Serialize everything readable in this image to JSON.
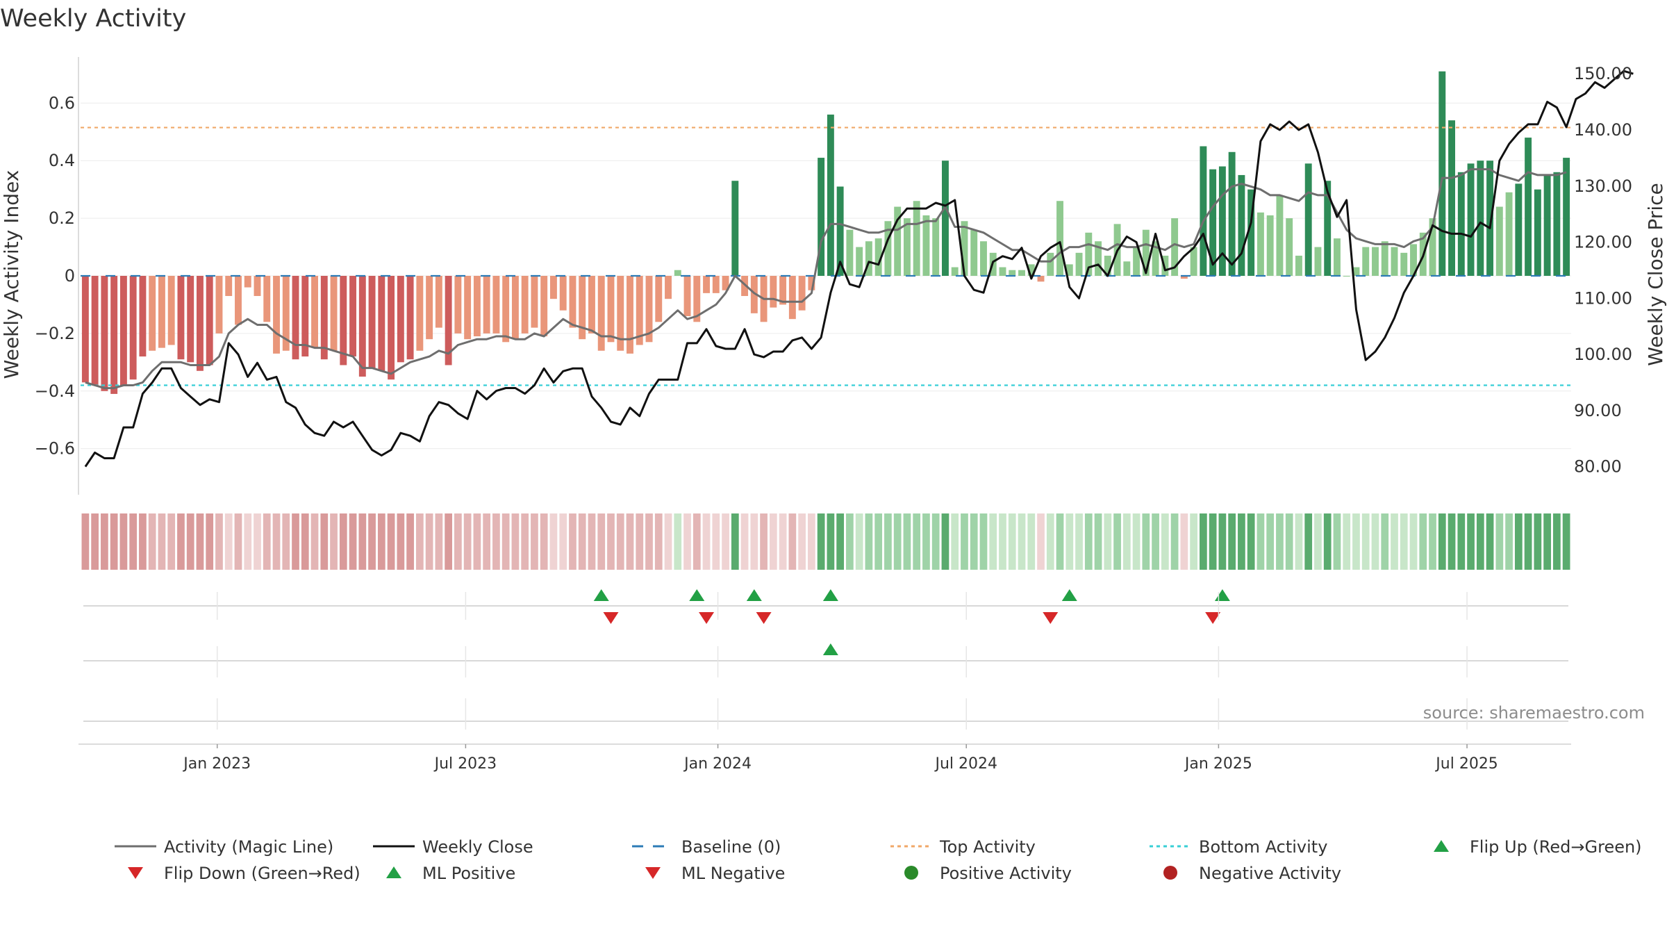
{
  "chart_data": {
    "type": "bar",
    "title": "Weekly Activity",
    "ylabel": "Weekly Activity Index",
    "y2label": "Weekly Close Price",
    "ylim": [
      -0.76,
      0.76
    ],
    "y2lim": [
      75,
      153
    ],
    "yticks": [
      0.6,
      0.4,
      0.2,
      0,
      -0.2,
      -0.4,
      -0.6
    ],
    "ytick_labels": [
      "0.6",
      "0.4",
      "0.2",
      "0",
      "−0.2",
      "−0.4",
      "−0.6"
    ],
    "y2ticks": [
      150,
      140,
      130,
      120,
      110,
      100,
      90,
      80
    ],
    "y2tick_labels": [
      "150.00",
      "140.00",
      "130.00",
      "120.00",
      "110.00",
      "100.00",
      "90.00",
      "80.00"
    ],
    "x_tick_labels": [
      "Jan 2023",
      "Jul 2023",
      "Jan 2024",
      "Jul 2024",
      "Jan 2025",
      "Jul 2025"
    ],
    "x_tick_weeks": [
      14.3,
      40.3,
      66.7,
      92.7,
      119.1,
      145.1
    ],
    "top_activity": 0.515,
    "bottom_activity": -0.38,
    "activity": [
      -0.37,
      -0.38,
      -0.4,
      -0.41,
      -0.38,
      -0.36,
      -0.28,
      -0.26,
      -0.25,
      -0.24,
      -0.29,
      -0.3,
      -0.33,
      -0.31,
      -0.2,
      -0.07,
      -0.17,
      -0.04,
      -0.07,
      -0.16,
      -0.27,
      -0.26,
      -0.29,
      -0.28,
      -0.25,
      -0.29,
      -0.26,
      -0.31,
      -0.28,
      -0.35,
      -0.32,
      -0.33,
      -0.36,
      -0.3,
      -0.29,
      -0.26,
      -0.22,
      -0.18,
      -0.31,
      -0.2,
      -0.22,
      -0.21,
      -0.2,
      -0.2,
      -0.23,
      -0.22,
      -0.2,
      -0.18,
      -0.21,
      -0.08,
      -0.12,
      -0.18,
      -0.22,
      -0.2,
      -0.26,
      -0.23,
      -0.26,
      -0.27,
      -0.24,
      -0.23,
      -0.16,
      -0.08,
      0.02,
      -0.14,
      -0.16,
      -0.06,
      -0.06,
      -0.05,
      0.33,
      -0.07,
      -0.13,
      -0.16,
      -0.11,
      -0.1,
      -0.15,
      -0.12,
      -0.05,
      0.41,
      0.56,
      0.31,
      0.16,
      0.1,
      0.12,
      0.13,
      0.19,
      0.24,
      0.2,
      0.26,
      0.21,
      0.2,
      0.4,
      0.03,
      0.19,
      0.16,
      0.12,
      0.08,
      0.03,
      0.02,
      0.02,
      0.04,
      -0.02,
      0.08,
      0.26,
      0.04,
      0.08,
      0.15,
      0.12,
      0.07,
      0.18,
      0.05,
      0.1,
      0.16,
      0.12,
      0.07,
      0.2,
      -0.01,
      0.1,
      0.45,
      0.37,
      0.38,
      0.43,
      0.35,
      0.3,
      0.22,
      0.21,
      0.28,
      0.2,
      0.07,
      0.39,
      0.1,
      0.33,
      0.13,
      0.0,
      0.03,
      0.1,
      0.1,
      0.12,
      0.1,
      0.08,
      0.11,
      0.15,
      0.2,
      0.71,
      0.54,
      0.36,
      0.39,
      0.4,
      0.4,
      0.24,
      0.29,
      0.32,
      0.48,
      0.3,
      0.35,
      0.36,
      0.41
    ],
    "magic_line": [
      -0.37,
      -0.38,
      -0.39,
      -0.39,
      -0.38,
      -0.38,
      -0.37,
      -0.33,
      -0.3,
      -0.3,
      -0.3,
      -0.31,
      -0.31,
      -0.31,
      -0.28,
      -0.2,
      -0.17,
      -0.15,
      -0.17,
      -0.17,
      -0.2,
      -0.22,
      -0.24,
      -0.24,
      -0.25,
      -0.25,
      -0.26,
      -0.27,
      -0.28,
      -0.32,
      -0.32,
      -0.33,
      -0.34,
      -0.32,
      -0.3,
      -0.29,
      -0.28,
      -0.26,
      -0.27,
      -0.24,
      -0.23,
      -0.22,
      -0.22,
      -0.21,
      -0.21,
      -0.22,
      -0.22,
      -0.2,
      -0.21,
      -0.18,
      -0.15,
      -0.17,
      -0.18,
      -0.19,
      -0.21,
      -0.21,
      -0.22,
      -0.22,
      -0.21,
      -0.2,
      -0.18,
      -0.15,
      -0.12,
      -0.15,
      -0.14,
      -0.12,
      -0.1,
      -0.06,
      0.0,
      -0.03,
      -0.06,
      -0.08,
      -0.08,
      -0.09,
      -0.09,
      -0.09,
      -0.06,
      0.12,
      0.18,
      0.18,
      0.17,
      0.16,
      0.15,
      0.15,
      0.16,
      0.16,
      0.18,
      0.18,
      0.19,
      0.19,
      0.24,
      0.17,
      0.17,
      0.16,
      0.15,
      0.13,
      0.11,
      0.09,
      0.09,
      0.07,
      0.05,
      0.05,
      0.08,
      0.1,
      0.1,
      0.11,
      0.1,
      0.09,
      0.11,
      0.1,
      0.1,
      0.11,
      0.1,
      0.09,
      0.11,
      0.1,
      0.11,
      0.19,
      0.24,
      0.28,
      0.31,
      0.32,
      0.31,
      0.3,
      0.28,
      0.28,
      0.27,
      0.26,
      0.29,
      0.28,
      0.28,
      0.22,
      0.16,
      0.13,
      0.12,
      0.11,
      0.11,
      0.11,
      0.1,
      0.12,
      0.13,
      0.17,
      0.34,
      0.34,
      0.35,
      0.37,
      0.37,
      0.37,
      0.35,
      0.34,
      0.33,
      0.36,
      0.35,
      0.35,
      0.35,
      0.36
    ],
    "weekly_close": [
      80,
      82.5,
      81.5,
      81.5,
      87,
      87,
      93,
      95,
      97.5,
      97.5,
      94,
      92.5,
      91,
      92,
      91.5,
      102,
      100,
      96,
      98.5,
      95.5,
      96,
      91.5,
      90.5,
      87.5,
      86,
      85.5,
      88,
      87,
      88,
      85.5,
      83,
      82,
      83,
      86,
      85.5,
      84.5,
      89,
      91.5,
      91,
      89.5,
      88.5,
      93.5,
      92,
      93.5,
      94,
      94,
      93,
      94.5,
      97.5,
      95,
      97,
      97.5,
      97.5,
      92.5,
      90.5,
      88,
      87.5,
      90.5,
      89,
      93,
      95.5,
      95.5,
      95.5,
      102,
      102,
      104.5,
      101.5,
      101,
      101,
      104.5,
      100,
      99.5,
      100.5,
      100.5,
      102.5,
      103,
      101,
      103,
      111,
      116.5,
      112.5,
      112,
      116.5,
      116,
      120.5,
      124,
      126,
      126,
      126,
      127,
      126.5,
      127.5,
      114,
      111.5,
      111,
      116.5,
      117.5,
      117,
      119,
      113.5,
      117.5,
      119,
      120,
      112,
      110,
      115.5,
      116,
      114,
      118.5,
      121,
      120,
      114.5,
      121.5,
      115,
      115.5,
      117.5,
      119,
      121.5,
      116,
      118,
      116,
      118,
      123.5,
      138,
      141,
      140,
      141.5,
      140,
      141,
      136,
      129,
      124.5,
      127.5,
      108,
      99,
      100.5,
      103,
      106.5,
      111,
      114,
      117.5,
      123,
      122,
      121.5,
      121.5,
      121,
      123.5,
      122.5,
      134.5,
      137.5,
      139.5,
      141,
      141,
      145,
      144,
      140.5,
      145.5,
      146.5,
      148.5,
      147.5,
      149,
      150.5,
      150
    ],
    "flip_up_weeks": [
      54,
      64,
      70,
      78,
      103,
      119
    ],
    "flip_down_weeks": [
      55,
      65,
      71,
      101,
      118
    ],
    "ml_positive_weeks": [
      78
    ],
    "ml_negative_weeks": []
  },
  "title": "Weekly Activity",
  "axes": {
    "ylabel": "Weekly Activity Index",
    "y2label": "Weekly Close Price"
  },
  "source": "source: sharemaestro.com",
  "legend": [
    {
      "label": "Activity (Magic Line)",
      "marker": "line",
      "color": "#6e6e6e"
    },
    {
      "label": "Weekly Close",
      "marker": "line",
      "color": "#111111"
    },
    {
      "label": "Baseline (0)",
      "marker": "dash",
      "color": "#2c7bb6"
    },
    {
      "label": "Top Activity",
      "marker": "dot",
      "color": "#f0a868"
    },
    {
      "label": "Bottom Activity",
      "marker": "dot",
      "color": "#38cfd6"
    },
    {
      "label": "Flip Up (Red→Green)",
      "marker": "tri-up",
      "color": "#22a045"
    },
    {
      "label": "Flip Down (Green→Red)",
      "marker": "tri-down",
      "color": "#d62728"
    },
    {
      "label": "ML Positive",
      "marker": "tri-up",
      "color": "#22a045"
    },
    {
      "label": "ML Negative",
      "marker": "tri-down",
      "color": "#d62728"
    },
    {
      "label": "Positive Activity",
      "marker": "circle",
      "color": "#2a8a2a"
    },
    {
      "label": "Negative Activity",
      "marker": "circle",
      "color": "#b22222"
    }
  ],
  "colors": {
    "strong_positive": "#2e8b57",
    "weak_positive": "#8fc98f",
    "strong_negative": "#cd5c5c",
    "weak_negative": "#e9967a",
    "magic_line": "#6e6e6e",
    "close_line": "#111111",
    "baseline": "#2c7bb6",
    "top_line": "#f0a868",
    "bottom_line": "#38cfd6",
    "flip_up": "#22a045",
    "flip_down": "#d62728"
  }
}
